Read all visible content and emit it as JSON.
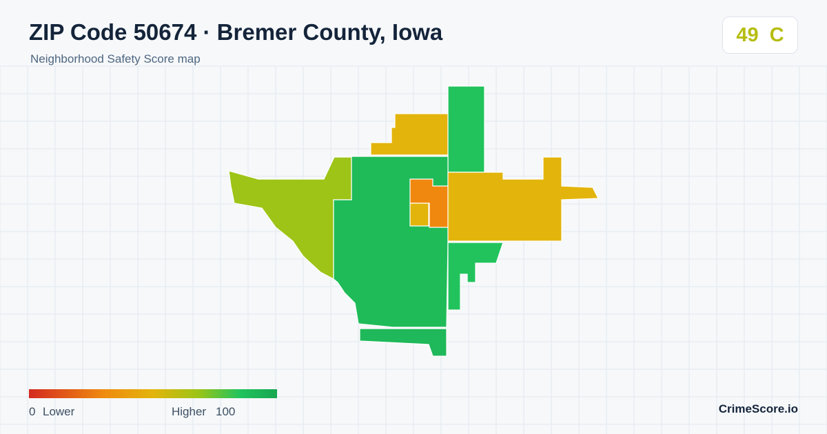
{
  "header": {
    "title": "ZIP Code 50674 · Bremer County, Iowa",
    "subtitle": "Neighborhood Safety Score map"
  },
  "score": {
    "value": 49,
    "grade": "C"
  },
  "legend": {
    "min_value": 0,
    "min_label": "Lower",
    "max_label": "Higher",
    "max_value": 100
  },
  "brand": "CrimeScore.io"
}
